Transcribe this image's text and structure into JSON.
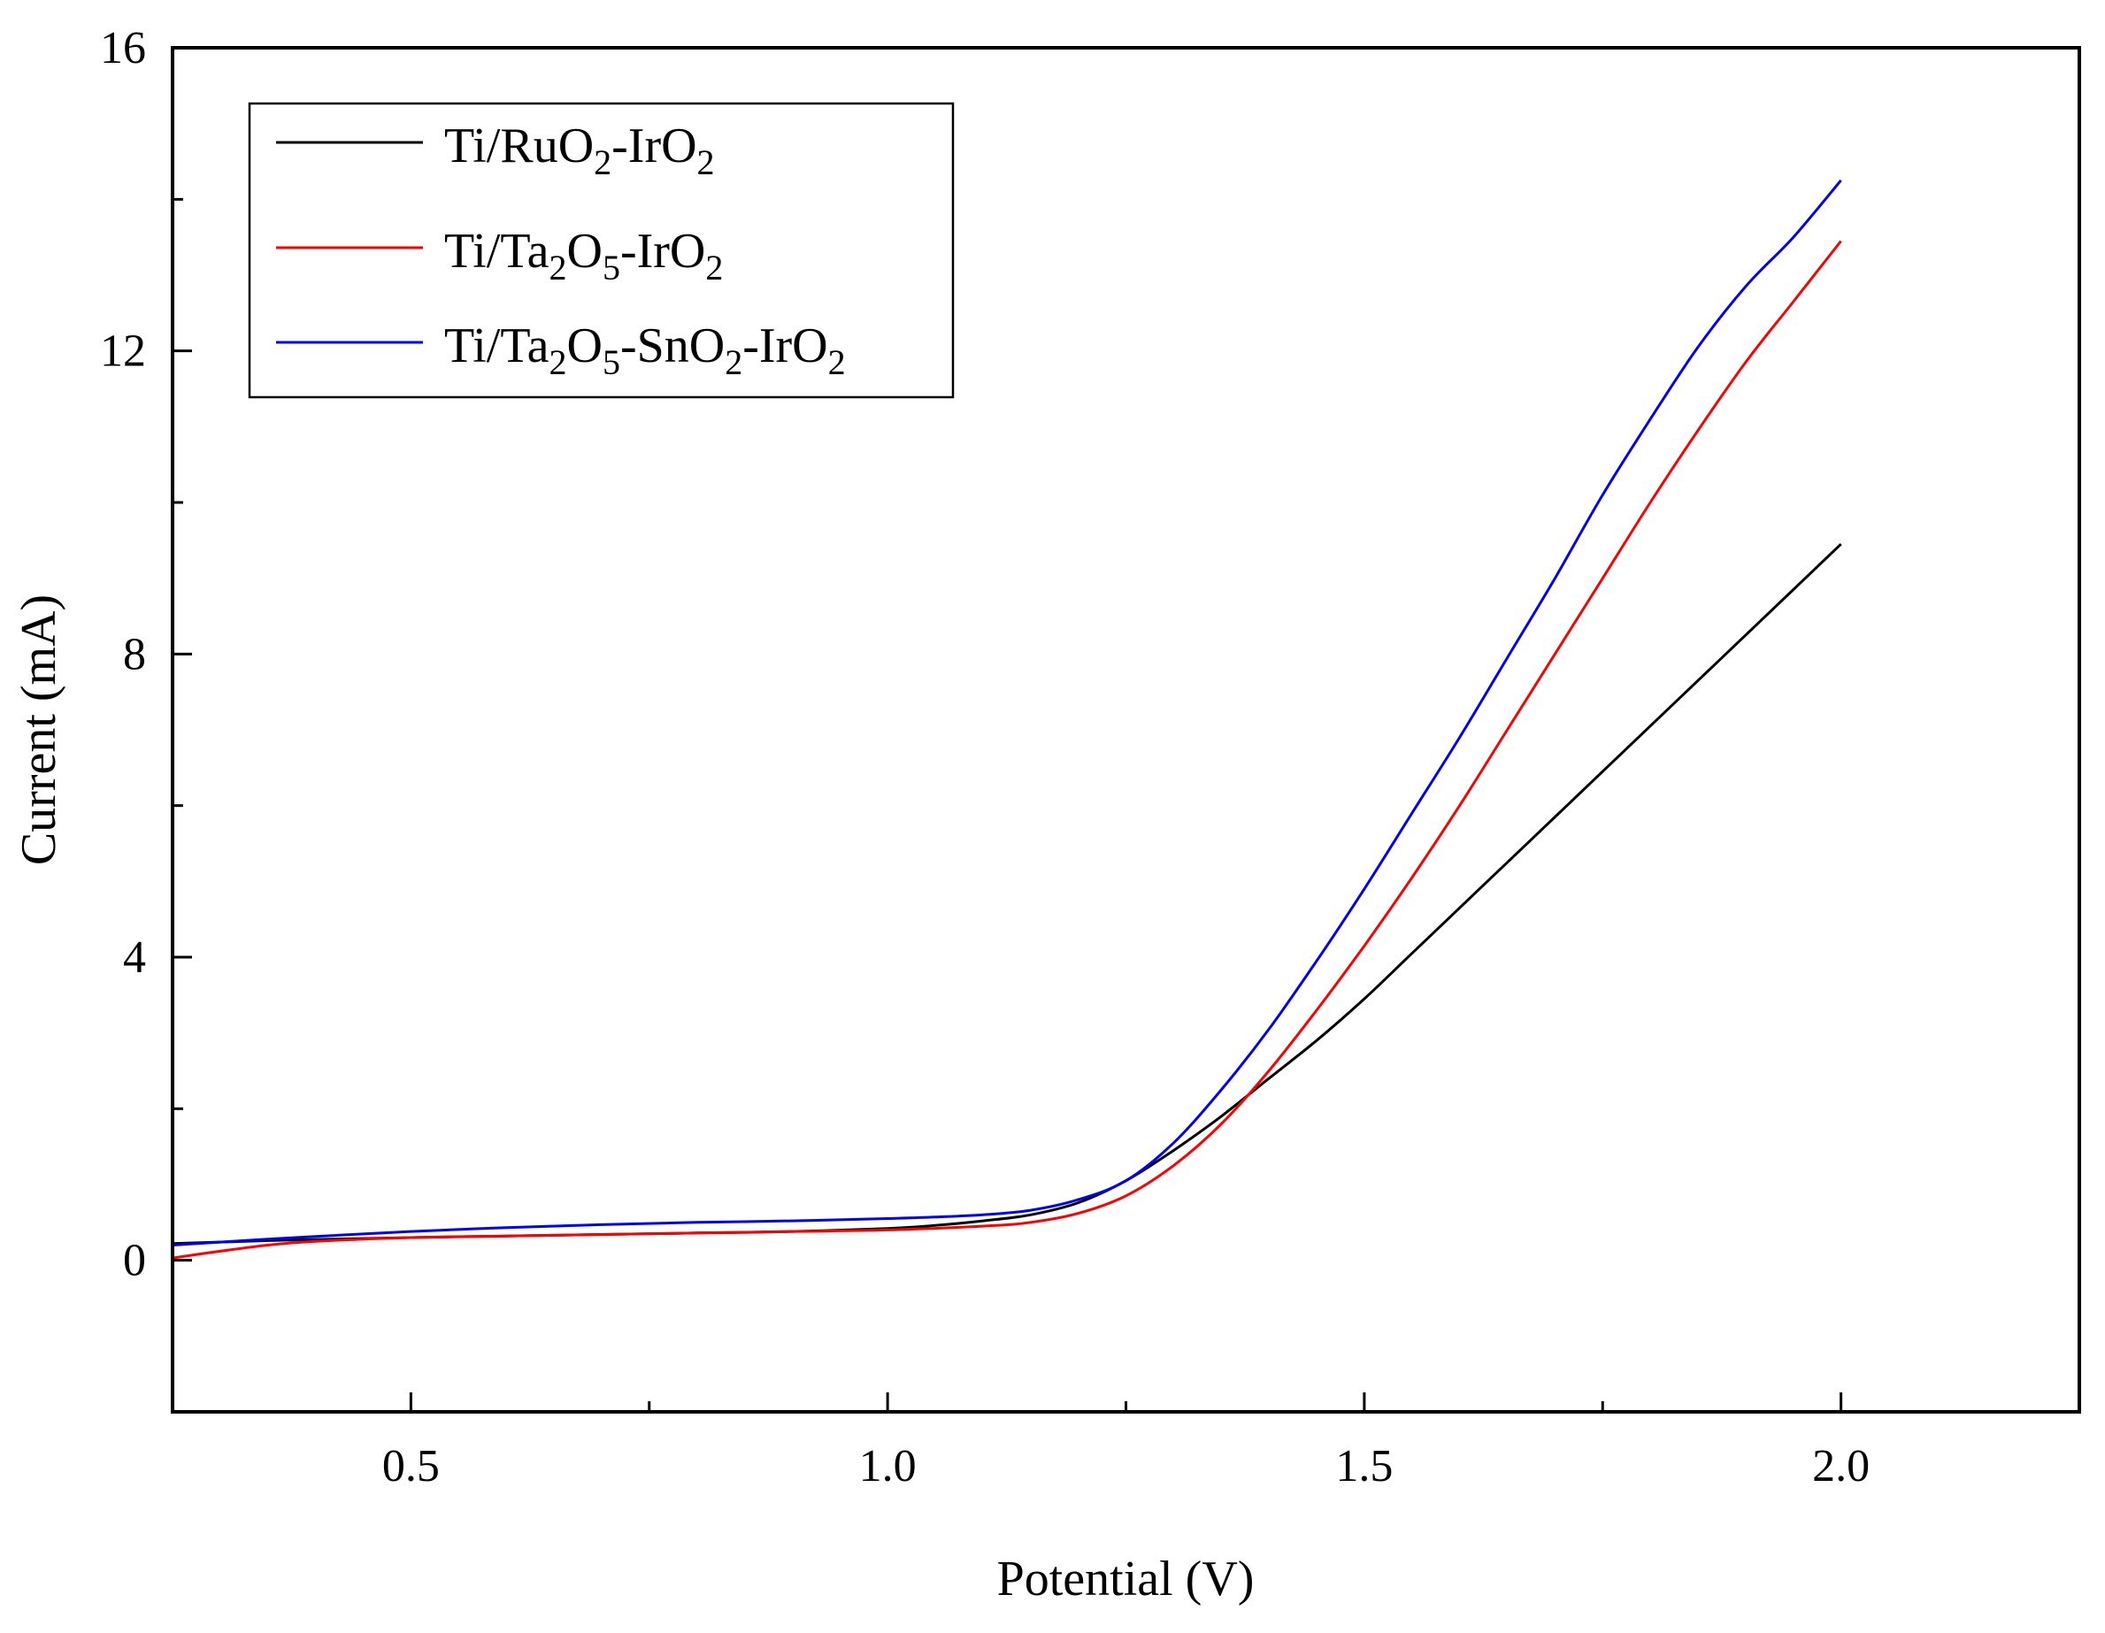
{
  "chart_data": {
    "type": "line",
    "title": "",
    "xlabel": "Potential (V)",
    "ylabel": "Current (mA)",
    "xlim": [
      0.25,
      2.25
    ],
    "ylim": [
      -2,
      16
    ],
    "x_major_ticks": [
      0.5,
      1.0,
      1.5,
      2.0
    ],
    "x_tick_labels": [
      "0.5",
      "1.0",
      "1.5",
      "2.0"
    ],
    "x_minor_ticks": [
      0.75,
      1.25,
      1.75
    ],
    "y_major_ticks": [
      0,
      4,
      8,
      12,
      16
    ],
    "y_tick_labels": [
      "0",
      "4",
      "8",
      "12",
      "16"
    ],
    "y_minor_ticks": [
      2,
      6,
      10,
      14
    ],
    "grid": false,
    "legend_position": "top-left",
    "series": [
      {
        "name": "Ti/RuO2-IrO2",
        "legend_parts": [
          {
            "t": "Ti/RuO",
            "sub": false
          },
          {
            "t": "2",
            "sub": true
          },
          {
            "t": "-IrO",
            "sub": false
          },
          {
            "t": "2",
            "sub": true
          }
        ],
        "color": "#000000",
        "x": [
          0.25,
          0.35,
          0.5,
          0.6,
          0.7,
          0.8,
          0.9,
          1.0,
          1.05,
          1.1,
          1.15,
          1.2,
          1.25,
          1.3,
          1.35,
          1.4,
          1.45,
          1.5,
          1.55,
          1.6,
          1.65,
          1.7,
          1.75,
          1.8,
          1.85,
          1.9,
          1.95,
          2.0
        ],
        "y": [
          0.22,
          0.26,
          0.3,
          0.32,
          0.34,
          0.36,
          0.38,
          0.42,
          0.46,
          0.52,
          0.6,
          0.76,
          1.05,
          1.45,
          1.9,
          2.4,
          2.9,
          3.45,
          4.05,
          4.65,
          5.25,
          5.85,
          6.45,
          7.05,
          7.65,
          8.25,
          8.85,
          9.45
        ]
      },
      {
        "name": "Ti/Ta2O5-IrO2",
        "legend_parts": [
          {
            "t": "Ti/Ta",
            "sub": false
          },
          {
            "t": "2",
            "sub": true
          },
          {
            "t": "O",
            "sub": false
          },
          {
            "t": "5",
            "sub": true
          },
          {
            "t": "-IrO",
            "sub": false
          },
          {
            "t": "2",
            "sub": true
          }
        ],
        "color": "#ff0000",
        "x": [
          0.25,
          0.3,
          0.35,
          0.4,
          0.5,
          0.6,
          0.7,
          0.8,
          0.9,
          1.0,
          1.1,
          1.15,
          1.2,
          1.25,
          1.3,
          1.35,
          1.4,
          1.45,
          1.5,
          1.55,
          1.6,
          1.65,
          1.7,
          1.75,
          1.8,
          1.85,
          1.9,
          1.95,
          2.0
        ],
        "y": [
          0.03,
          0.12,
          0.2,
          0.25,
          0.3,
          0.32,
          0.34,
          0.36,
          0.38,
          0.4,
          0.45,
          0.5,
          0.62,
          0.85,
          1.25,
          1.8,
          2.5,
          3.3,
          4.15,
          5.05,
          6.0,
          7.0,
          8.0,
          9.0,
          10.0,
          10.95,
          11.85,
          12.65,
          13.45
        ]
      },
      {
        "name": "Ti/Ta2O5-SnO2-IrO2",
        "legend_parts": [
          {
            "t": "Ti/Ta",
            "sub": false
          },
          {
            "t": "2",
            "sub": true
          },
          {
            "t": "O",
            "sub": false
          },
          {
            "t": "5",
            "sub": true
          },
          {
            "t": "-SnO",
            "sub": false
          },
          {
            "t": "2",
            "sub": true
          },
          {
            "t": "-IrO",
            "sub": false
          },
          {
            "t": "2",
            "sub": true
          }
        ],
        "color": "#0000ff",
        "x": [
          0.25,
          0.35,
          0.5,
          0.6,
          0.7,
          0.8,
          0.9,
          1.0,
          1.05,
          1.1,
          1.15,
          1.2,
          1.25,
          1.3,
          1.35,
          1.4,
          1.45,
          1.5,
          1.55,
          1.6,
          1.65,
          1.7,
          1.75,
          1.8,
          1.85,
          1.9,
          1.95,
          2.0
        ],
        "y": [
          0.2,
          0.28,
          0.38,
          0.43,
          0.47,
          0.5,
          0.52,
          0.55,
          0.57,
          0.6,
          0.66,
          0.8,
          1.05,
          1.55,
          2.25,
          3.05,
          3.95,
          4.9,
          5.9,
          6.9,
          7.95,
          9.0,
          10.1,
          11.1,
          12.05,
          12.85,
          13.5,
          14.25
        ]
      }
    ]
  }
}
